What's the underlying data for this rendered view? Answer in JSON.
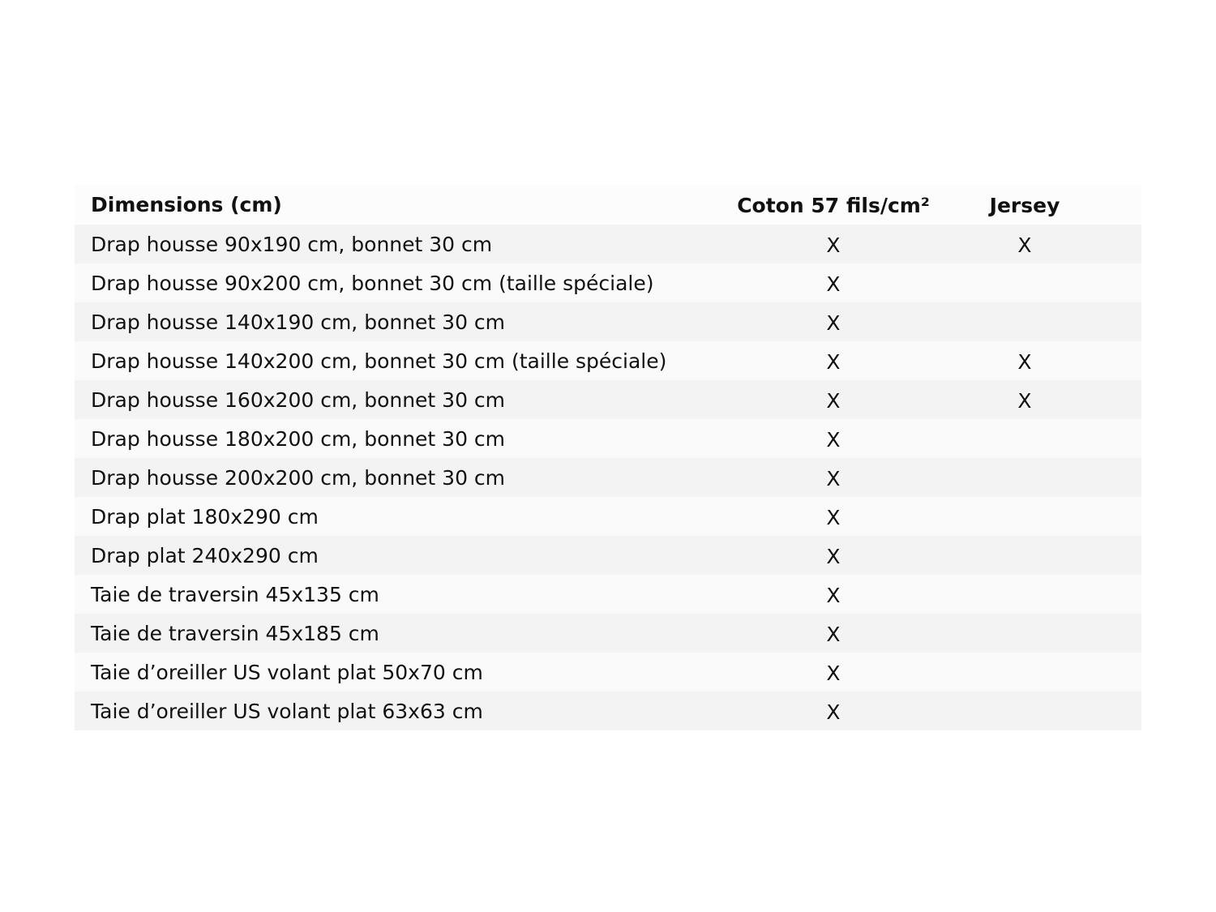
{
  "headers": [
    "Dimensions (cm)",
    "Coton 57 fils/cm²",
    "Jersey"
  ],
  "rows": [
    {
      "label": "Drap housse 90x190 cm, bonnet 30 cm",
      "coton": "X",
      "jersey": "X"
    },
    {
      "label": "Drap housse 90x200 cm, bonnet 30 cm (taille spéciale)",
      "coton": "X",
      "jersey": ""
    },
    {
      "label": "Drap housse 140x190 cm, bonnet 30 cm",
      "coton": "X",
      "jersey": ""
    },
    {
      "label": "Drap housse 140x200 cm, bonnet 30 cm (taille spéciale)",
      "coton": "X",
      "jersey": "X"
    },
    {
      "label": "Drap housse 160x200 cm, bonnet 30 cm",
      "coton": "X",
      "jersey": "X"
    },
    {
      "label": "Drap housse 180x200 cm, bonnet 30 cm",
      "coton": "X",
      "jersey": ""
    },
    {
      "label": "Drap housse 200x200 cm, bonnet 30 cm",
      "coton": "X",
      "jersey": ""
    },
    {
      "label": "Drap plat 180x290 cm",
      "coton": "X",
      "jersey": ""
    },
    {
      "label": "Drap plat 240x290 cm",
      "coton": "X",
      "jersey": ""
    },
    {
      "label": "Taie de traversin 45x135 cm",
      "coton": "X",
      "jersey": ""
    },
    {
      "label": "Taie de traversin 45x185 cm",
      "coton": "X",
      "jersey": ""
    },
    {
      "label": "Taie d’oreiller US volant plat 50x70 cm",
      "coton": "X",
      "jersey": ""
    },
    {
      "label": "Taie d’oreiller US volant plat 63x63 cm",
      "coton": "X",
      "jersey": ""
    }
  ]
}
